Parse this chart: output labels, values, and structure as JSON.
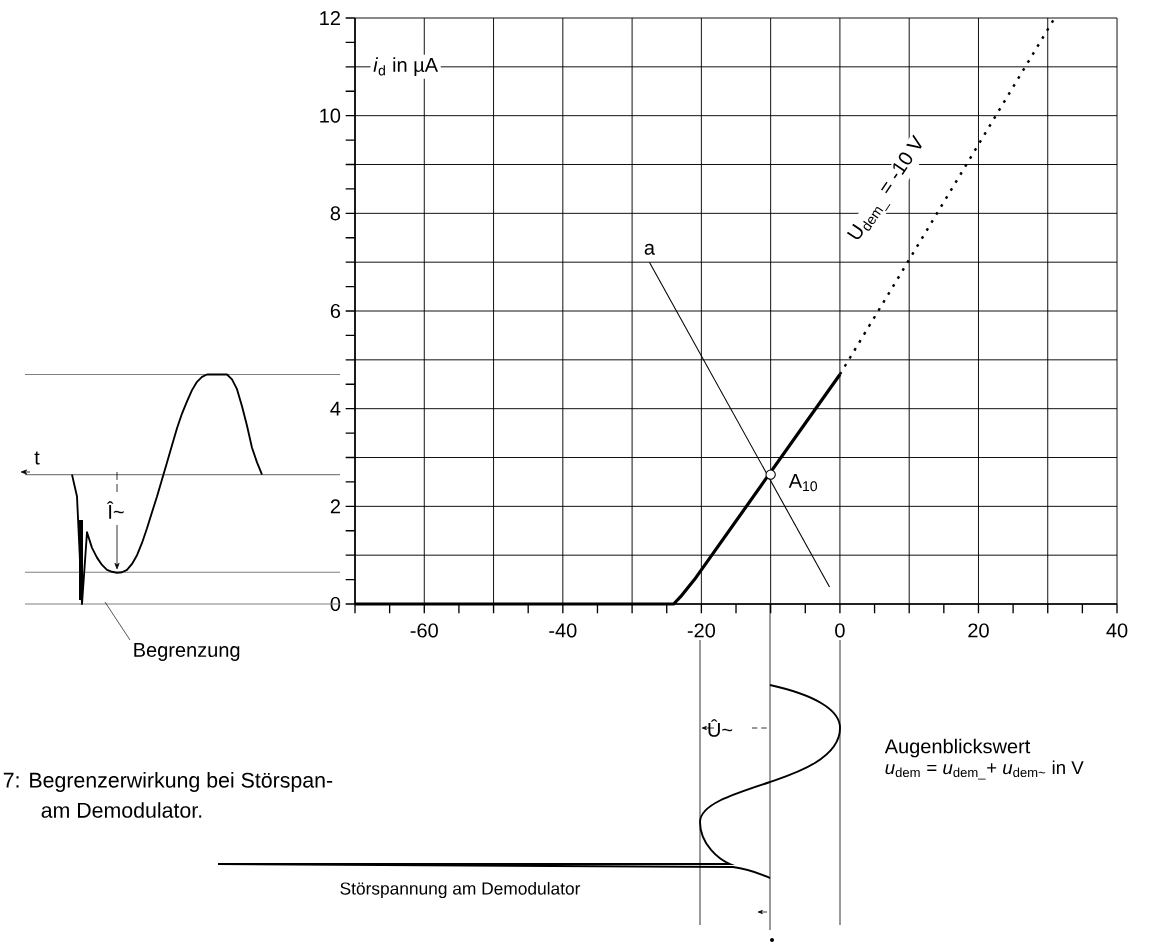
{
  "chart_data": [
    {
      "type": "line",
      "ylabel": "*i*$_{d}$ in µA",
      "xlim": [
        -70,
        40
      ],
      "ylim": [
        0,
        12
      ],
      "xticks": [
        {
          "value": -70,
          "label": null
        },
        -60,
        {
          "value": -50,
          "label": null
        },
        -40,
        {
          "value": -30,
          "label": null
        },
        -20,
        {
          "value": -10,
          "label": null
        },
        0,
        {
          "value": 10,
          "label": null
        },
        20,
        {
          "value": 30,
          "label": null
        },
        40
      ],
      "yticks": [
        0,
        {
          "value": 1,
          "label": null
        },
        2,
        {
          "value": 3,
          "label": null
        },
        4,
        {
          "value": 5,
          "label": null
        },
        6,
        {
          "value": 7,
          "label": null
        },
        8,
        {
          "value": 9,
          "label": null
        },
        10,
        {
          "value": 11,
          "label": null
        },
        12
      ],
      "grid": true,
      "series": [
        {
          "type": "line",
          "color": "#000000",
          "line_style": "solid",
          "x": [
            -70,
            -24,
            -23,
            -21,
            0
          ],
          "values": [
            0,
            0,
            0.15,
            0.5,
            4.7
          ]
        },
        {
          "type": "line",
          "color": "#000000",
          "line_style": "dotted",
          "x": [
            0,
            31
          ],
          "values": [
            4.7,
            12
          ]
        },
        {
          "type": "line",
          "color": "#000000",
          "line_style": "solid",
          "x": [
            -27.5,
            -1.5
          ],
          "values": [
            7.0,
            0.35
          ]
        },
        {
          "type": "scatter",
          "color": "#000000",
          "marker": "circle",
          "x": [
            -10
          ],
          "values": [
            2.65
          ]
        }
      ],
      "annotations": [
        {
          "text": "a",
          "x": -27.5,
          "y": 7.0
        },
        {
          "text": "A$_{10}$",
          "x": -10,
          "y": 2.65
        },
        "U$_{dem_}$ = -10 V",
        "Augenblickswert",
        "*u*$_{dem}$ = *u*$_{dem_}$+ *u*$_{dem~}$ in V",
        "Û~",
        "Störspannung am Demodulator",
        "7: Begrenzerwirkung bei Störspan-",
        "am Demodulator."
      ]
    },
    {
      "type": "line",
      "ylim": [
        0,
        12
      ],
      "tick_labels": false,
      "categories": [
        null,
        null,
        null,
        null,
        null,
        null,
        null,
        null,
        null,
        null,
        null,
        null,
        null,
        null,
        null,
        null,
        null,
        null,
        null,
        null,
        null,
        null,
        null,
        null,
        null,
        null,
        null,
        null,
        null,
        null,
        null,
        null,
        null,
        null,
        null,
        null,
        null,
        null,
        null
      ],
      "series": [
        {
          "color": "#000000",
          "line_style": "solid",
          "values": [
            2.65,
            2.2,
            0,
            1.47,
            1.15,
            0.95,
            0.8,
            0.7,
            0.66,
            0.64,
            0.65,
            0.7,
            0.82,
            1.0,
            1.25,
            1.55,
            1.88,
            2.2,
            2.55,
            2.9,
            3.25,
            3.6,
            3.9,
            4.15,
            4.38,
            4.55,
            4.65,
            4.7,
            4.7,
            4.7,
            4.7,
            4.7,
            4.6,
            4.4,
            4.05,
            3.65,
            3.2,
            2.9,
            2.65
          ]
        }
      ],
      "ref_lines": [
        {
          "axis": "y",
          "value": 4.7,
          "color": "#808080"
        },
        {
          "axis": "y",
          "value": 2.65,
          "color": "#808080"
        },
        {
          "axis": "y",
          "value": 0.65,
          "color": "#808080"
        },
        {
          "axis": "y",
          "value": 0,
          "color": "#808080"
        }
      ],
      "annotations": [
        "t",
        "Î~",
        "Begrenzung"
      ]
    }
  ]
}
